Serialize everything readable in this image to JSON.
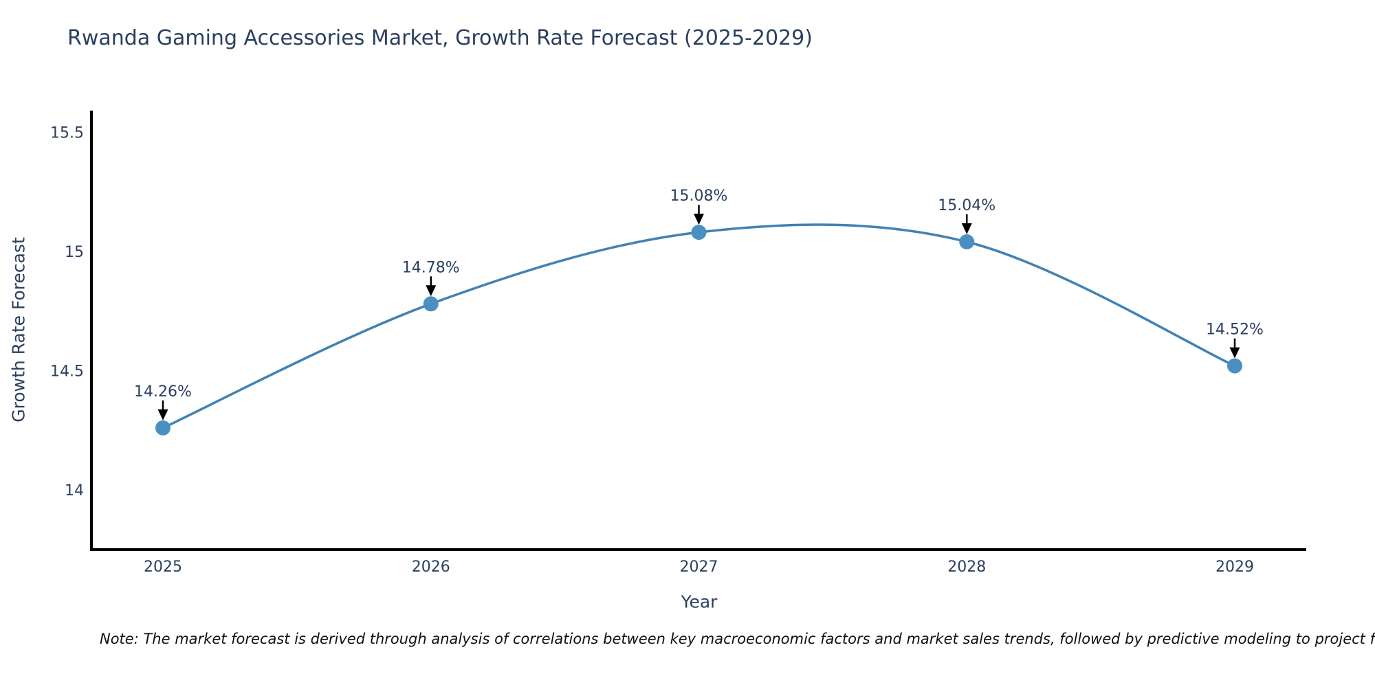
{
  "title": "Rwanda Gaming Accessories Market, Growth Rate Forecast (2025-2029)",
  "note": "Note: The market forecast is derived through analysis of correlations between key macroeconomic factors and market sales trends, followed by predictive modeling to project future sales.",
  "chart_data": {
    "type": "line",
    "title": "Rwanda Gaming Accessories Market, Growth Rate Forecast (2025-2029)",
    "categories": [
      "2025",
      "2026",
      "2027",
      "2028",
      "2029"
    ],
    "series": [
      {
        "name": "Growth Rate Forecast",
        "values": [
          14.26,
          14.78,
          15.08,
          15.04,
          14.52
        ]
      }
    ],
    "point_labels": [
      "14.26%",
      "14.78%",
      "15.08%",
      "15.04%",
      "14.52%"
    ],
    "xlabel": "Year",
    "ylabel": "Growth Rate Forecast",
    "yticks": [
      14,
      14.5,
      15,
      15.5
    ],
    "ytick_labels": [
      "14",
      "14.5",
      "15",
      "15.5"
    ],
    "ylim": [
      13.75,
      15.59
    ],
    "grid": false,
    "legend_position": "none",
    "line_shape": "spline",
    "colors": {
      "line": "#4182b4",
      "marker": "#4a8fc2",
      "axis": "#000000",
      "text": "#2a3f5f",
      "annotation_arrow": "#000000"
    }
  }
}
